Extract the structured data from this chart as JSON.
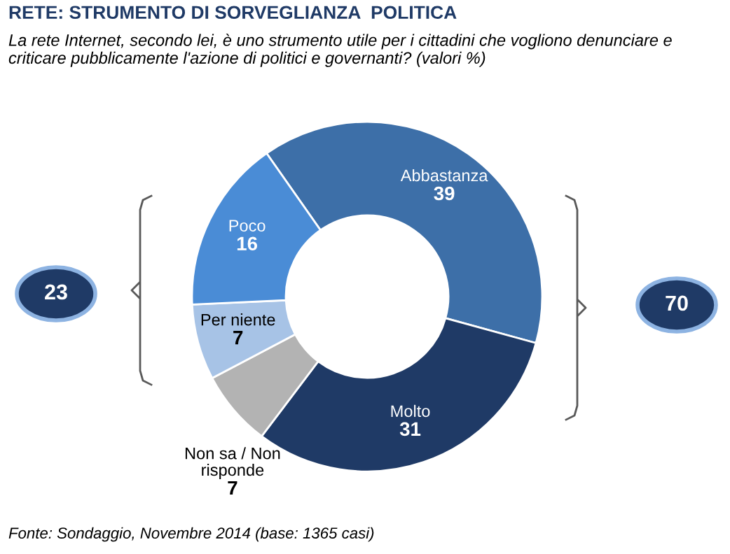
{
  "chart_data": {
    "type": "donut",
    "title": "RETE: STRUMENTO DI SORVEGLIANZA  POLITICA",
    "subtitle": "La rete Internet, secondo lei, è uno strumento utile per i cittadini che vogliono denunciare e criticare pubblicamente l'azione di politici e governanti? (valori %)",
    "categories": [
      "Abbastanza",
      "Molto",
      "Non sa / Non\nrisponde",
      "Per niente",
      "Poco"
    ],
    "values": [
      39,
      31,
      7,
      7,
      16
    ],
    "colors": [
      "#3d6fa8",
      "#1f3a66",
      "#b3b3b3",
      "#a7c3e6",
      "#4a8cd6"
    ],
    "data_labels": true,
    "annotations": [
      "23",
      "70",
      "Fonte: Sondaggio, Novembre 2014 (base: 1365 casi)"
    ]
  }
}
